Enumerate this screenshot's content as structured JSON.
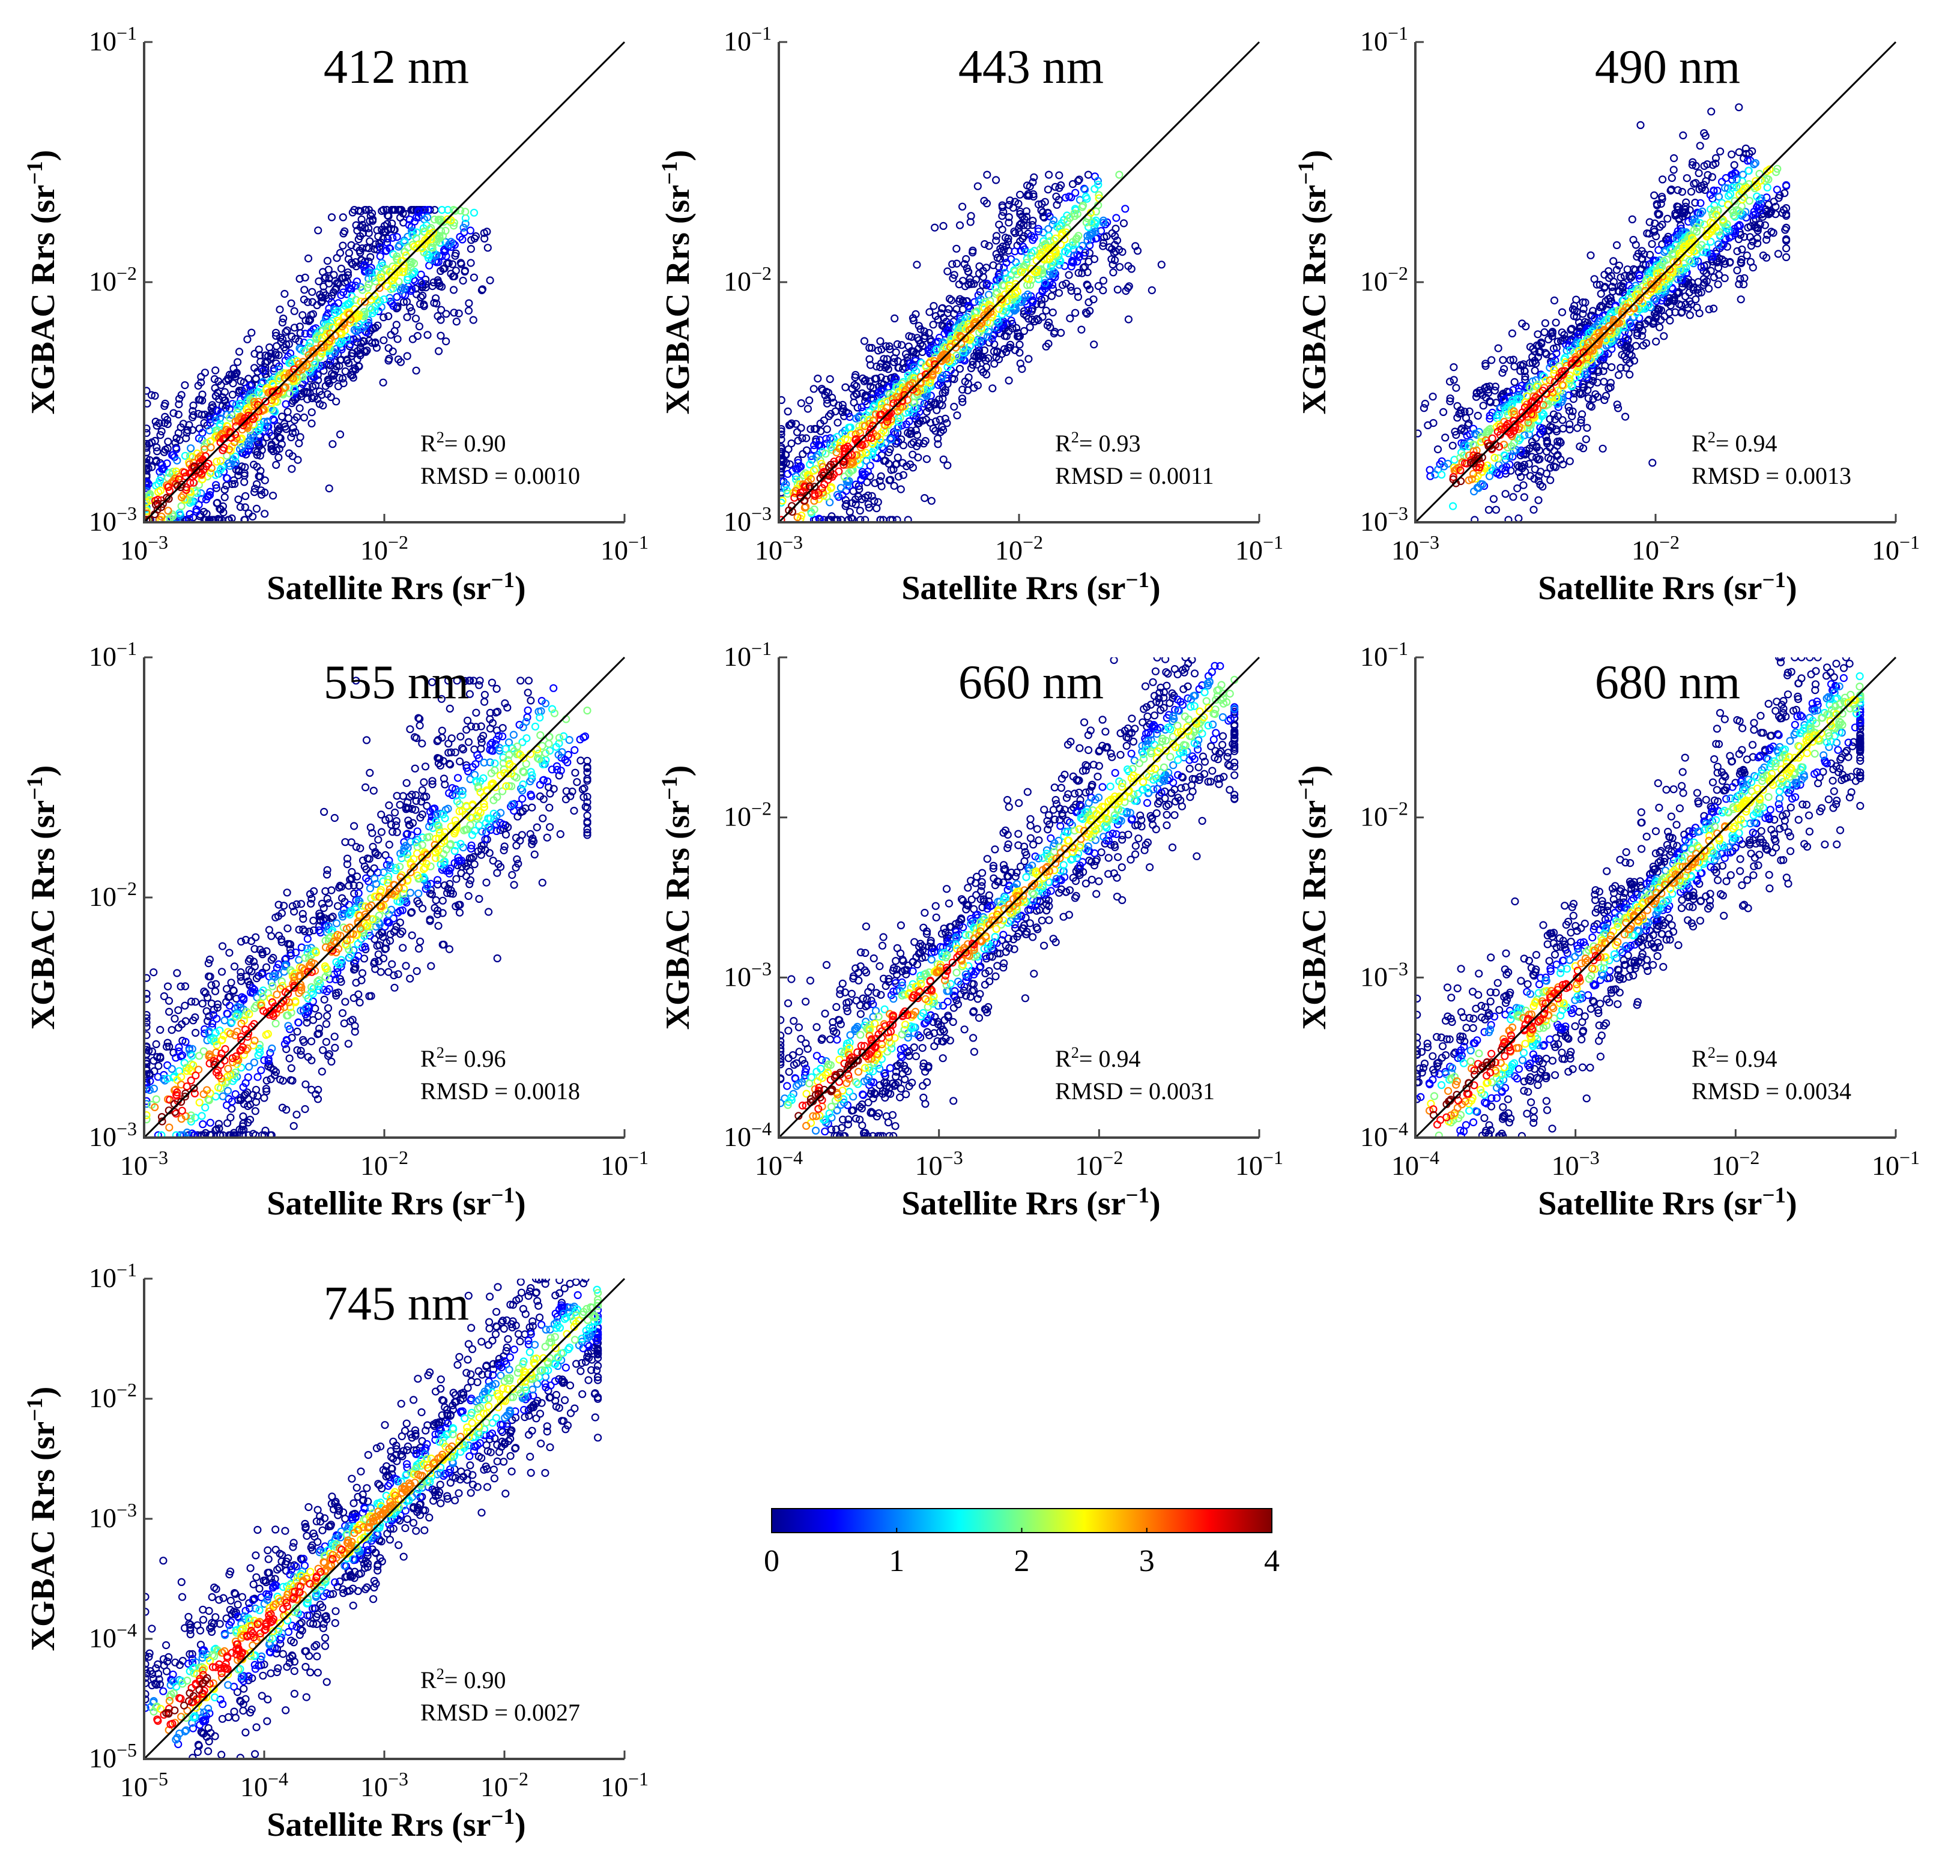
{
  "chart_data": [
    {
      "type": "scatter",
      "title": "412 nm",
      "xlabel": "Satellite Rrs",
      "xlabel_unit": "(sr",
      "ylabel": "XGBAC Rrs",
      "ylabel_unit": "(sr",
      "unit_exp": "−1",
      "unit_close": ")",
      "xscale": "log",
      "yscale": "log",
      "xlim": [
        0.001,
        0.1
      ],
      "ylim": [
        0.001,
        0.1
      ],
      "ticks": [
        {
          "base": "10",
          "exp": "−3",
          "value": 0.001
        },
        {
          "base": "10",
          "exp": "−2",
          "value": 0.01
        },
        {
          "base": "10",
          "exp": "−1",
          "value": 0.1
        }
      ],
      "identity_line": true,
      "density_cloud": {
        "center_start": 0.0011,
        "center_end": 0.018,
        "spread": 0.42,
        "bias": 0.0,
        "tail_x": 0.035,
        "tail_y": 0.02
      },
      "stats": {
        "r2_label": "R",
        "r2_exp": "2",
        "r2_value": "= 0.90",
        "rmsd_label": "RMSD = 0.0010"
      }
    },
    {
      "type": "scatter",
      "title": "443 nm",
      "xlabel": "Satellite Rrs",
      "xlabel_unit": "(sr",
      "ylabel": "XGBAC Rrs",
      "ylabel_unit": "(sr",
      "unit_exp": "−1",
      "unit_close": ")",
      "xscale": "log",
      "yscale": "log",
      "xlim": [
        0.001,
        0.1
      ],
      "ylim": [
        0.001,
        0.1
      ],
      "ticks": [
        {
          "base": "10",
          "exp": "−3",
          "value": 0.001
        },
        {
          "base": "10",
          "exp": "−2",
          "value": 0.01
        },
        {
          "base": "10",
          "exp": "−1",
          "value": 0.1
        }
      ],
      "identity_line": true,
      "density_cloud": {
        "center_start": 0.0012,
        "center_end": 0.02,
        "spread": 0.42,
        "bias": 0.0,
        "tail_x": 0.04,
        "tail_y": 0.028
      },
      "stats": {
        "r2_label": "R",
        "r2_exp": "2",
        "r2_value": "= 0.93",
        "rmsd_label": "RMSD = 0.0011"
      }
    },
    {
      "type": "scatter",
      "title": "490 nm",
      "xlabel": "Satellite Rrs",
      "xlabel_unit": "(sr",
      "ylabel": "XGBAC Rrs",
      "ylabel_unit": "(sr",
      "unit_exp": "−1",
      "unit_close": ")",
      "xscale": "log",
      "yscale": "log",
      "xlim": [
        0.001,
        0.1
      ],
      "ylim": [
        0.001,
        0.1
      ],
      "ticks": [
        {
          "base": "10",
          "exp": "−3",
          "value": 0.001
        },
        {
          "base": "10",
          "exp": "−2",
          "value": 0.01
        },
        {
          "base": "10",
          "exp": "−1",
          "value": 0.1
        }
      ],
      "identity_line": true,
      "density_cloud": {
        "center_start": 0.0016,
        "center_end": 0.028,
        "spread": 0.38,
        "bias": 0.0,
        "tail_x": 0.035,
        "tail_y": 0.055
      },
      "stats": {
        "r2_label": "R",
        "r2_exp": "2",
        "r2_value": "= 0.94",
        "rmsd_label": "RMSD = 0.0013"
      }
    },
    {
      "type": "scatter",
      "title": "555 nm",
      "xlabel": "Satellite Rrs",
      "xlabel_unit": "(sr",
      "ylabel": "XGBAC Rrs",
      "ylabel_unit": "(sr",
      "unit_exp": "−1",
      "unit_close": ")",
      "xscale": "log",
      "yscale": "log",
      "xlim": [
        0.001,
        0.1
      ],
      "ylim": [
        0.001,
        0.1
      ],
      "ticks": [
        {
          "base": "10",
          "exp": "−3",
          "value": 0.001
        },
        {
          "base": "10",
          "exp": "−2",
          "value": 0.01
        },
        {
          "base": "10",
          "exp": "−1",
          "value": 0.1
        }
      ],
      "identity_line": true,
      "density_cloud": {
        "center_start": 0.0012,
        "center_end": 0.05,
        "spread": 0.55,
        "bias": 0.0,
        "tail_x": 0.07,
        "tail_y": 0.08
      },
      "stats": {
        "r2_label": "R",
        "r2_exp": "2",
        "r2_value": "= 0.96",
        "rmsd_label": "RMSD = 0.0018"
      }
    },
    {
      "type": "scatter",
      "title": "660 nm",
      "xlabel": "Satellite Rrs",
      "xlabel_unit": "(sr",
      "ylabel": "XGBAC Rrs",
      "ylabel_unit": "(sr",
      "unit_exp": "−1",
      "unit_close": ")",
      "xscale": "log",
      "yscale": "log",
      "xlim": [
        0.0001,
        0.1
      ],
      "ylim": [
        0.0001,
        0.1
      ],
      "ticks": [
        {
          "base": "10",
          "exp": "−4",
          "value": 0.0001
        },
        {
          "base": "10",
          "exp": "−3",
          "value": 0.001
        },
        {
          "base": "10",
          "exp": "−2",
          "value": 0.01
        },
        {
          "base": "10",
          "exp": "−1",
          "value": 0.1
        }
      ],
      "identity_line": true,
      "density_cloud": {
        "center_start": 0.00015,
        "center_end": 0.06,
        "spread": 0.65,
        "bias": 0.0,
        "tail_x": 0.07,
        "tail_y": 0.1
      },
      "stats": {
        "r2_label": "R",
        "r2_exp": "2",
        "r2_value": "= 0.94",
        "rmsd_label": "RMSD = 0.0031"
      }
    },
    {
      "type": "scatter",
      "title": "680 nm",
      "xlabel": "Satellite Rrs",
      "xlabel_unit": "(sr",
      "ylabel": "XGBAC Rrs",
      "ylabel_unit": "(sr",
      "unit_exp": "−1",
      "unit_close": ")",
      "xscale": "log",
      "yscale": "log",
      "xlim": [
        0.0001,
        0.1
      ],
      "ylim": [
        0.0001,
        0.1
      ],
      "ticks": [
        {
          "base": "10",
          "exp": "−4",
          "value": 0.0001
        },
        {
          "base": "10",
          "exp": "−3",
          "value": 0.001
        },
        {
          "base": "10",
          "exp": "−2",
          "value": 0.01
        },
        {
          "base": "10",
          "exp": "−1",
          "value": 0.1
        }
      ],
      "identity_line": true,
      "density_cloud": {
        "center_start": 0.00015,
        "center_end": 0.06,
        "spread": 0.65,
        "bias": 0.0,
        "tail_x": 0.06,
        "tail_y": 0.1
      },
      "stats": {
        "r2_label": "R",
        "r2_exp": "2",
        "r2_value": "= 0.94",
        "rmsd_label": "RMSD = 0.0034"
      }
    },
    {
      "type": "scatter",
      "title": "745 nm",
      "xlabel": "Satellite Rrs",
      "xlabel_unit": "(sr",
      "ylabel": "XGBAC Rrs",
      "ylabel_unit": "(sr",
      "unit_exp": "−1",
      "unit_close": ")",
      "xscale": "log",
      "yscale": "log",
      "xlim": [
        1e-05,
        0.1
      ],
      "ylim": [
        1e-05,
        0.1
      ],
      "ticks": [
        {
          "base": "10",
          "exp": "−5",
          "value": 1e-05
        },
        {
          "base": "10",
          "exp": "−4",
          "value": 0.0001
        },
        {
          "base": "10",
          "exp": "−3",
          "value": 0.001
        },
        {
          "base": "10",
          "exp": "−2",
          "value": 0.01
        },
        {
          "base": "10",
          "exp": "−1",
          "value": 0.1
        }
      ],
      "identity_line": true,
      "density_cloud": {
        "center_start": 1.5e-05,
        "center_end": 0.06,
        "spread": 0.8,
        "bias": 0.15,
        "tail_x": 0.06,
        "tail_y": 0.1
      },
      "stats": {
        "r2_label": "R",
        "r2_exp": "2",
        "r2_value": "= 0.90",
        "rmsd_label": "RMSD = 0.0027"
      }
    }
  ],
  "colorbar": {
    "colormap": "jet",
    "min": 0,
    "max": 4,
    "tick_labels": [
      "0",
      "1",
      "2",
      "3",
      "4"
    ],
    "colors": [
      "#00008f",
      "#0000ff",
      "#0080ff",
      "#00ffff",
      "#80ff80",
      "#ffff00",
      "#ff8000",
      "#ff0000",
      "#800000"
    ]
  },
  "colors": {
    "axis": "#444444",
    "identity_line": "#000000",
    "background": "#ffffff"
  }
}
